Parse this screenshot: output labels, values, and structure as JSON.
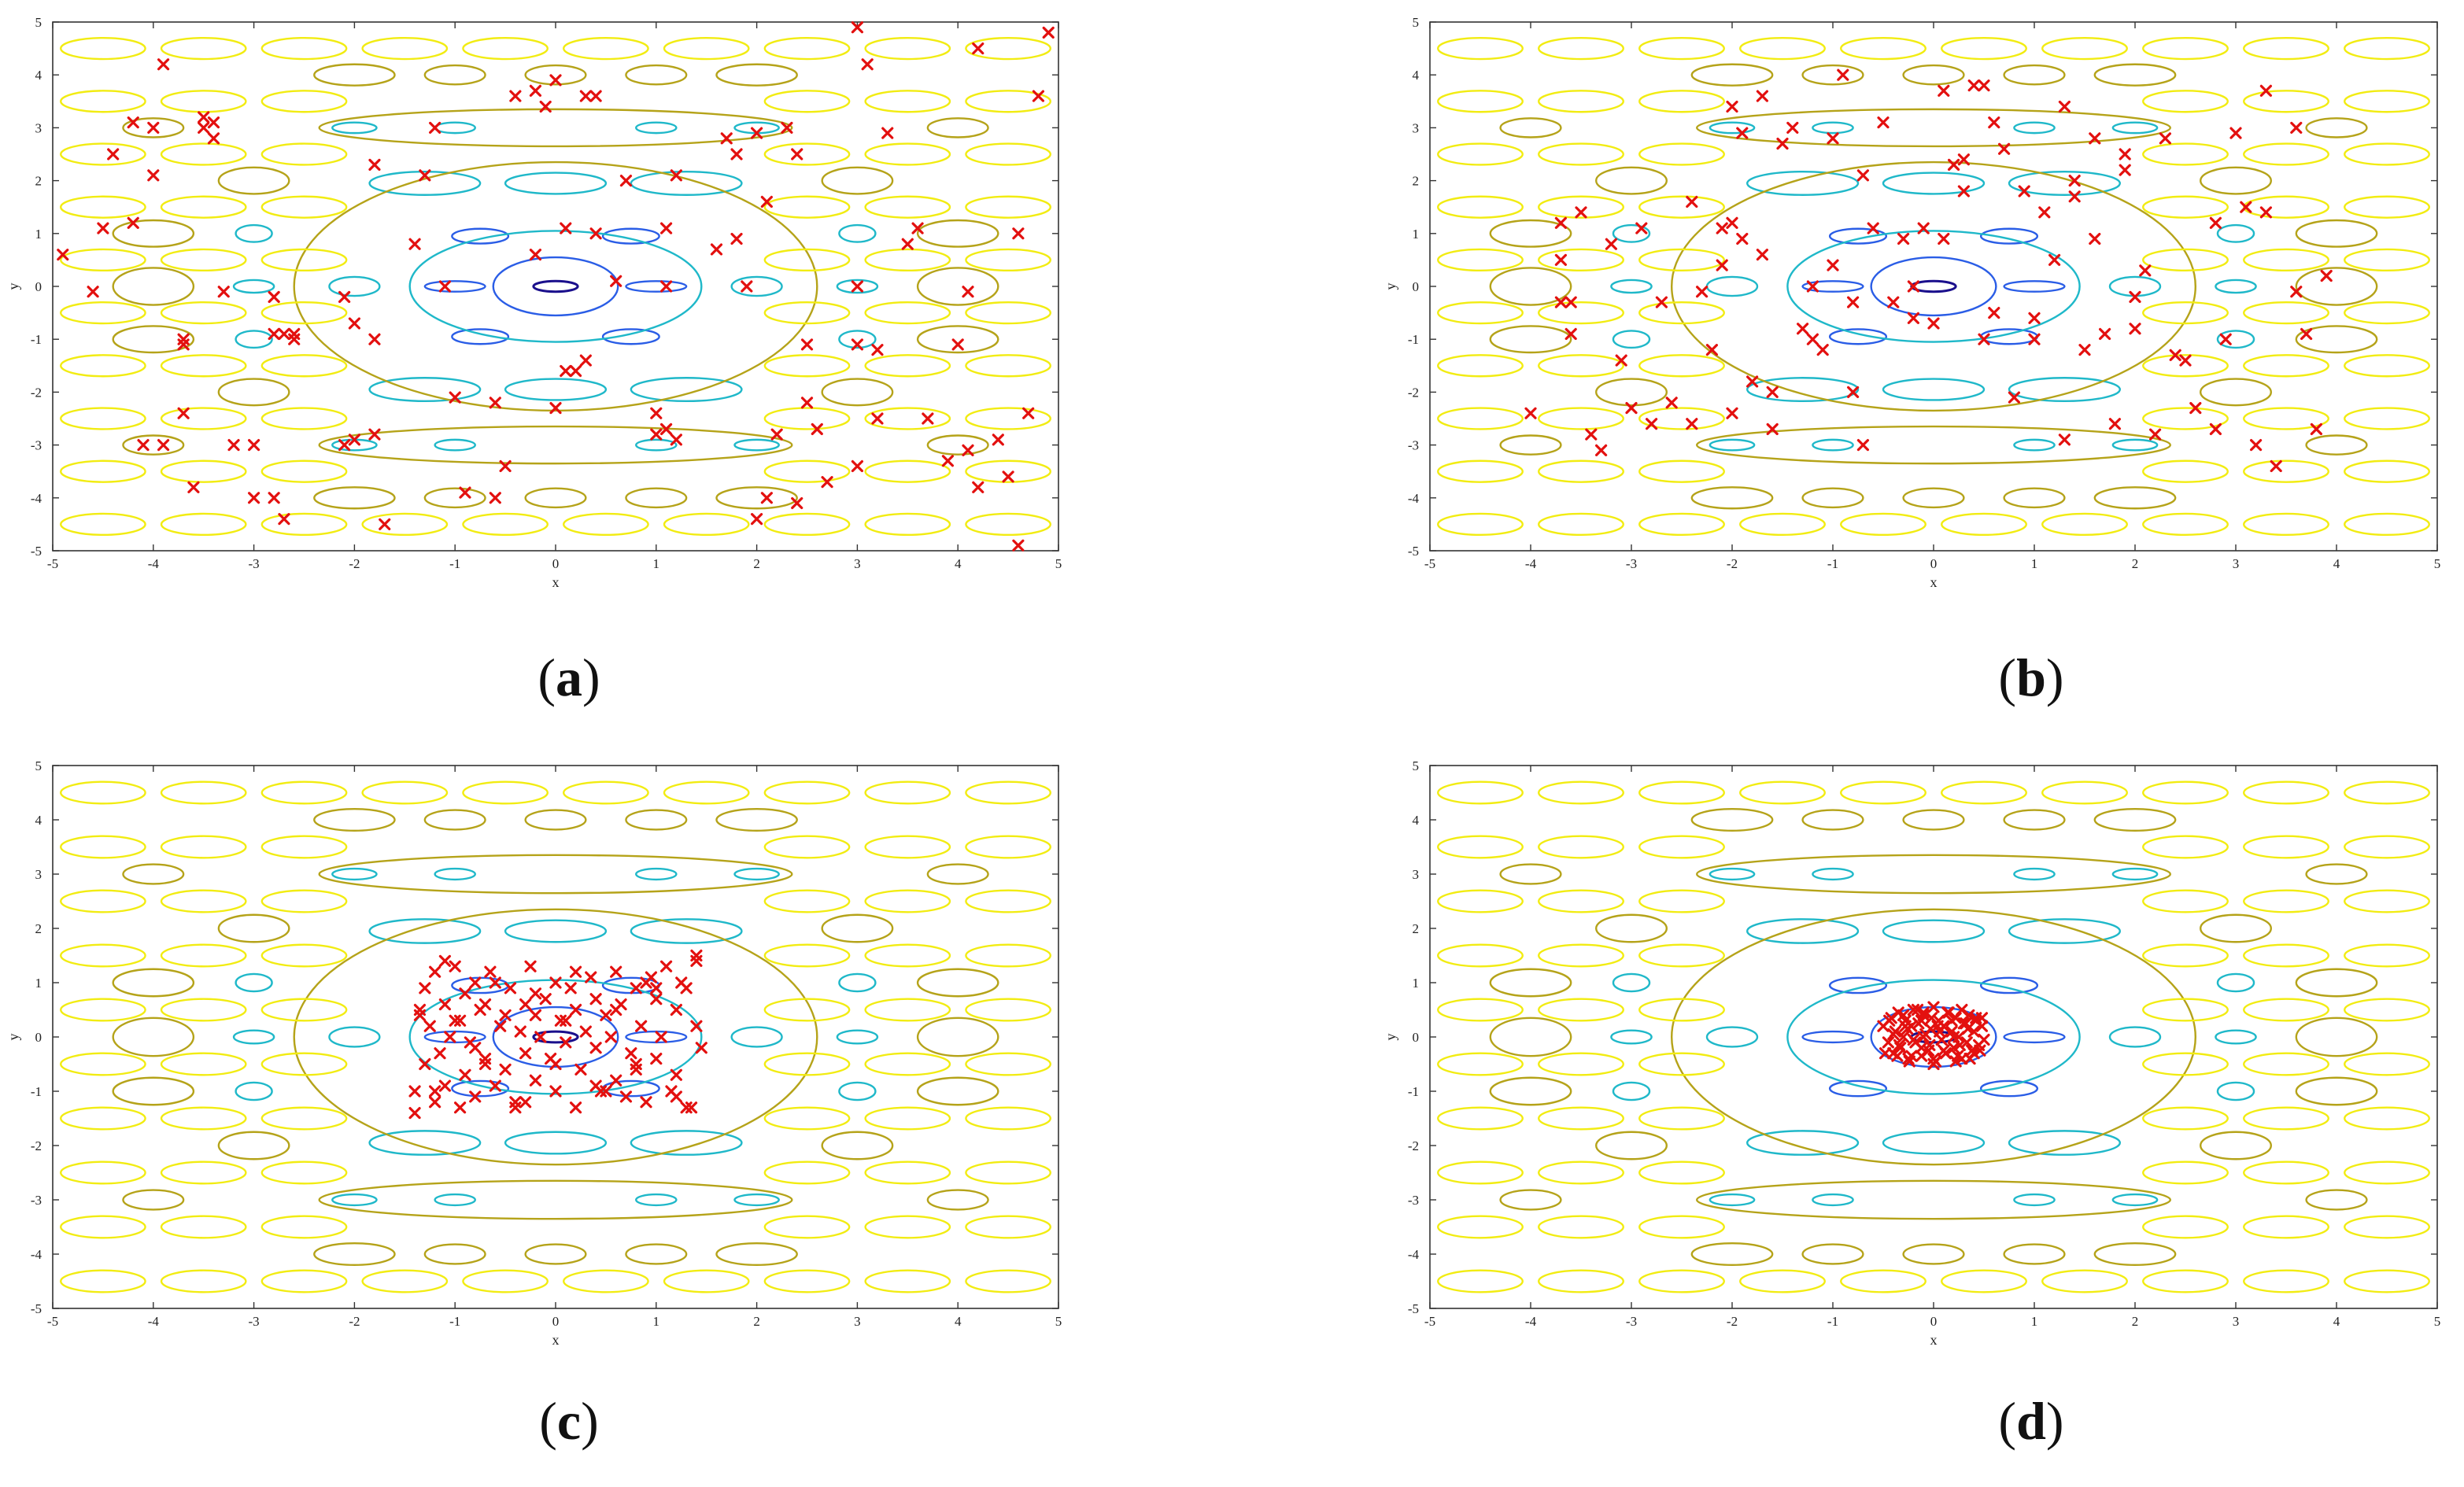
{
  "figure": {
    "panels": [
      {
        "label_open": "(",
        "label_letter": "a",
        "label_close": ")"
      },
      {
        "label_open": "(",
        "label_letter": "b",
        "label_close": ")"
      },
      {
        "label_open": "(",
        "label_letter": "c",
        "label_close": ")"
      },
      {
        "label_open": "(",
        "label_letter": "d",
        "label_close": ")"
      }
    ]
  },
  "chart_data": [
    {
      "type": "scatter",
      "title": "",
      "xlabel": "x",
      "ylabel": "y",
      "xlim": [
        -5,
        5
      ],
      "ylim": [
        -5,
        5
      ],
      "xticks": [
        -5,
        -4,
        -3,
        -2,
        -1,
        0,
        1,
        2,
        3,
        4,
        5
      ],
      "yticks": [
        -5,
        -4,
        -3,
        -2,
        -1,
        0,
        1,
        2,
        3,
        4,
        5
      ],
      "grid": false,
      "background": "contour plot of a multimodal test function with global minimum at (0,0)",
      "contour_colors": [
        "#1a0f8c",
        "#2a5de6",
        "#1fb8c9",
        "#b5a319",
        "#f2ec12"
      ],
      "marker": "x",
      "marker_color": "#e3100f",
      "series": [
        {
          "x": [
            -4.9,
            -4.6,
            -4.4,
            -4.2,
            -4.0,
            -3.9,
            -3.7,
            -3.5,
            -3.5,
            -3.4,
            -3.3,
            -3.7,
            -3.6,
            -3.4,
            -4.2,
            -4.5,
            -4.0,
            -3.7,
            -2.8,
            -2.7,
            -2.6,
            -2.7,
            -2.6,
            -2.8,
            -3.0,
            -2.0,
            -2.1,
            -1.8,
            -1.7,
            -2.0,
            -1.8,
            -1.4,
            -1.3,
            -1.2,
            -1.0,
            -0.9,
            -0.5,
            -0.4,
            -0.2,
            -0.1,
            0.0,
            0.1,
            0.3,
            0.4,
            0.4,
            0.2,
            0.3,
            0.1,
            0.0,
            -0.2,
            -0.6,
            0.7,
            1.0,
            1.1,
            1.2,
            0.6,
            1.0,
            1.1,
            1.6,
            1.7,
            1.8,
            1.9,
            2.1,
            2.0,
            2.2,
            2.3,
            2.4,
            2.5,
            2.5,
            2.6,
            2.7,
            3.0,
            3.0,
            3.1,
            3.2,
            3.0,
            3.0,
            3.5,
            3.6,
            3.3,
            3.2,
            3.7,
            3.9,
            4.0,
            4.1,
            4.2,
            4.4,
            4.5,
            4.6,
            4.7,
            4.8,
            4.9,
            4.6,
            4.2,
            4.1,
            2.0,
            2.1,
            2.4,
            1.8,
            1.1,
            1.2,
            -1.8,
            -2.1,
            -3.0,
            -1.1,
            -0.6,
            -4.1,
            -3.9,
            -3.2,
            -2.8
          ],
          "y": [
            0.6,
            -0.1,
            2.5,
            1.2,
            3.0,
            4.2,
            -1.0,
            3.0,
            3.2,
            2.8,
            -0.1,
            -2.4,
            -3.8,
            3.1,
            3.1,
            1.1,
            2.1,
            -1.1,
            -0.9,
            -4.4,
            -1.0,
            -0.9,
            -0.9,
            -0.2,
            -4.0,
            -2.9,
            -0.2,
            -2.8,
            -4.5,
            -0.7,
            2.3,
            0.8,
            2.1,
            3.0,
            -2.1,
            -3.9,
            -3.4,
            3.6,
            3.7,
            3.4,
            3.9,
            1.1,
            3.6,
            3.6,
            1.0,
            -1.6,
            -1.4,
            -1.6,
            -2.3,
            0.6,
            -4.0,
            2.0,
            -2.8,
            -2.7,
            2.1,
            0.1,
            -2.4,
            1.1,
            0.7,
            2.8,
            0.9,
            0.0,
            1.6,
            -4.4,
            -2.8,
            3.0,
            2.5,
            -1.1,
            -2.2,
            -2.7,
            -3.7,
            0.0,
            -3.4,
            4.2,
            -1.2,
            4.9,
            -1.1,
            0.8,
            1.1,
            2.9,
            -2.5,
            -2.5,
            -3.3,
            -1.1,
            -0.1,
            4.5,
            -2.9,
            -3.6,
            1.0,
            -2.4,
            3.6,
            4.8,
            -4.9,
            -3.8,
            -3.1,
            2.9,
            -4.0,
            -4.1,
            2.5,
            0.0,
            -2.9,
            -1.0,
            -3.0,
            -3.0,
            0.0,
            -2.2,
            -3.0,
            -3.0,
            -3.0,
            -4.0
          ]
        }
      ]
    },
    {
      "type": "scatter",
      "title": "",
      "xlabel": "x",
      "ylabel": "y",
      "xlim": [
        -5,
        5
      ],
      "ylim": [
        -5,
        5
      ],
      "xticks": [
        -5,
        -4,
        -3,
        -2,
        -1,
        0,
        1,
        2,
        3,
        4,
        5
      ],
      "yticks": [
        -5,
        -4,
        -3,
        -2,
        -1,
        0,
        1,
        2,
        3,
        4,
        5
      ],
      "grid": false,
      "marker": "x",
      "marker_color": "#e3100f",
      "series": [
        {
          "x": [
            -4.0,
            -3.7,
            -3.7,
            -3.6,
            -3.6,
            -3.5,
            -3.4,
            -3.3,
            -3.2,
            -3.1,
            -2.9,
            -2.8,
            -2.7,
            -2.6,
            -2.4,
            -2.4,
            -2.3,
            -2.2,
            -2.1,
            -2.0,
            -2.0,
            -1.9,
            -1.9,
            -1.8,
            -1.7,
            -1.6,
            -1.6,
            -1.5,
            -1.4,
            -1.3,
            -1.2,
            -1.1,
            -1.0,
            -1.0,
            -0.9,
            -0.8,
            -0.8,
            -0.7,
            -0.6,
            -0.5,
            -0.4,
            -0.3,
            -0.2,
            -0.2,
            -0.1,
            0.0,
            0.1,
            0.1,
            0.2,
            0.3,
            0.4,
            0.5,
            0.6,
            0.7,
            0.8,
            0.9,
            1.0,
            1.0,
            1.1,
            1.2,
            1.3,
            1.3,
            1.4,
            1.5,
            1.6,
            1.7,
            1.8,
            1.9,
            2.0,
            2.1,
            2.2,
            2.3,
            2.5,
            2.6,
            2.8,
            2.9,
            3.0,
            3.1,
            3.2,
            3.3,
            3.4,
            3.6,
            3.7,
            3.8,
            3.9,
            -3.0,
            -2.1,
            -1.7,
            -1.2,
            -0.7,
            0.3,
            0.6,
            1.6,
            2.0,
            2.8,
            3.6,
            -3.7,
            -2.0,
            0.5,
            1.4,
            1.9,
            2.4,
            3.3
          ],
          "y": [
            -2.4,
            1.2,
            0.5,
            -0.3,
            -0.9,
            1.4,
            -2.8,
            -3.1,
            0.8,
            -1.4,
            1.1,
            -2.6,
            -0.3,
            -2.2,
            1.6,
            -2.6,
            -0.1,
            -1.2,
            0.4,
            -2.4,
            3.4,
            0.9,
            2.9,
            -1.8,
            0.6,
            -2.0,
            -2.7,
            2.7,
            3.0,
            -0.8,
            0.0,
            -1.2,
            2.8,
            0.4,
            4.0,
            -0.3,
            -2.0,
            2.1,
            1.1,
            3.1,
            -0.3,
            0.9,
            -0.6,
            0.0,
            1.1,
            -0.7,
            3.7,
            0.9,
            2.3,
            1.8,
            3.8,
            -1.0,
            3.1,
            2.6,
            -2.1,
            1.8,
            -1.0,
            -0.6,
            1.4,
            0.5,
            3.4,
            -2.9,
            2.0,
            -1.2,
            2.8,
            -0.9,
            -2.6,
            2.2,
            -0.2,
            0.3,
            -2.8,
            2.8,
            -1.4,
            -2.3,
            -2.7,
            -1.0,
            2.9,
            1.5,
            -3.0,
            3.7,
            -3.4,
            -0.1,
            -0.9,
            -2.7,
            0.2,
            -2.3,
            1.1,
            3.6,
            -1.0,
            -3.0,
            2.4,
            -0.5,
            0.9,
            -0.8,
            1.2,
            3.0,
            -0.3,
            1.2,
            3.8,
            1.7,
            2.5,
            -1.3,
            1.4
          ],
          "note_hidden": ""
        }
      ]
    },
    {
      "type": "scatter",
      "title": "",
      "xlabel": "x",
      "ylabel": "y",
      "xlim": [
        -5,
        5
      ],
      "ylim": [
        -5,
        5
      ],
      "xticks": [
        -5,
        -4,
        -3,
        -2,
        -1,
        0,
        1,
        2,
        3,
        4,
        5
      ],
      "yticks": [
        -5,
        -4,
        -3,
        -2,
        -1,
        0,
        1,
        2,
        3,
        4,
        5
      ],
      "grid": false,
      "marker": "x",
      "marker_color": "#e3100f",
      "series": [
        {
          "x": [
            -1.4,
            -1.35,
            -1.3,
            -1.3,
            -1.25,
            -1.2,
            -1.2,
            -1.15,
            -1.1,
            -1.1,
            -1.05,
            -1.0,
            -0.95,
            -0.95,
            -0.9,
            -0.9,
            -0.85,
            -0.8,
            -0.8,
            -0.75,
            -0.7,
            -0.7,
            -0.65,
            -0.6,
            -0.55,
            -0.5,
            -0.5,
            -0.45,
            -0.4,
            -0.35,
            -0.3,
            -0.3,
            -0.25,
            -0.2,
            -0.2,
            -0.15,
            -0.1,
            -0.05,
            0.0,
            0.0,
            0.05,
            0.1,
            0.15,
            0.2,
            0.2,
            0.25,
            0.3,
            0.35,
            0.4,
            0.4,
            0.45,
            0.5,
            0.55,
            0.6,
            0.6,
            0.65,
            0.7,
            0.75,
            0.8,
            0.8,
            0.85,
            0.9,
            0.95,
            1.0,
            1.0,
            1.05,
            1.1,
            1.15,
            1.2,
            1.2,
            1.25,
            1.3,
            1.35,
            1.4,
            1.4,
            1.45,
            -1.35,
            -1.2,
            -1.0,
            -0.8,
            -0.6,
            -0.4,
            -0.2,
            0.0,
            0.2,
            0.4,
            0.6,
            0.8,
            1.0,
            1.2,
            1.4,
            -1.4,
            -1.1,
            -0.7,
            -0.3,
            0.1,
            0.5,
            0.9,
            1.3
          ],
          "y": [
            -1.4,
            0.4,
            -0.5,
            0.9,
            0.2,
            -1.2,
            1.2,
            -0.3,
            0.6,
            -0.9,
            0.0,
            1.3,
            -1.3,
            0.3,
            -0.7,
            0.8,
            -0.1,
            1.0,
            -1.1,
            0.5,
            -0.4,
            0.6,
            1.2,
            -0.9,
            0.2,
            0.4,
            -0.6,
            0.9,
            -1.2,
            0.1,
            0.6,
            -0.3,
            1.3,
            -0.8,
            0.4,
            0.0,
            0.7,
            -0.4,
            1.0,
            -1.0,
            0.3,
            -0.1,
            0.9,
            -1.3,
            0.5,
            -0.6,
            0.1,
            1.1,
            -0.2,
            0.7,
            -1.0,
            0.4,
            0.0,
            -0.8,
            1.2,
            0.6,
            -1.1,
            -0.3,
            0.9,
            -0.6,
            0.2,
            -1.2,
            1.1,
            0.7,
            -0.4,
            0.0,
            1.3,
            -1.0,
            0.5,
            -0.7,
            1.0,
            0.9,
            -1.3,
            0.2,
            1.5,
            -0.2,
            0.5,
            -1.0,
            0.3,
            -0.2,
            1.0,
            -1.3,
            0.8,
            -0.5,
            1.2,
            -0.9,
            0.5,
            -0.5,
            0.9,
            -1.1,
            1.4,
            -1.0,
            1.4,
            -0.5,
            -1.2,
            0.3,
            -1.0,
            1.0,
            -1.3
          ],
          "note_hidden": ""
        }
      ]
    },
    {
      "type": "scatter",
      "title": "",
      "xlabel": "x",
      "ylabel": "y",
      "xlim": [
        -5,
        5
      ],
      "ylim": [
        -5,
        5
      ],
      "xticks": [
        -5,
        -4,
        -3,
        -2,
        -1,
        0,
        1,
        2,
        3,
        4,
        5
      ],
      "yticks": [
        -5,
        -4,
        -3,
        -2,
        -1,
        0,
        1,
        2,
        3,
        4,
        5
      ],
      "grid": false,
      "marker": "x",
      "marker_color": "#e3100f",
      "series": [
        {
          "x": [
            -0.5,
            -0.45,
            -0.42,
            -0.4,
            -0.38,
            -0.35,
            -0.33,
            -0.3,
            -0.28,
            -0.25,
            -0.22,
            -0.2,
            -0.18,
            -0.15,
            -0.12,
            -0.1,
            -0.08,
            -0.05,
            -0.03,
            0.0,
            0.02,
            0.05,
            0.08,
            0.1,
            0.12,
            0.15,
            0.18,
            0.2,
            0.22,
            0.25,
            0.28,
            0.3,
            0.33,
            0.35,
            0.38,
            0.4,
            0.42,
            0.45,
            0.48,
            0.5,
            -0.48,
            -0.36,
            -0.24,
            -0.12,
            0.0,
            0.12,
            0.24,
            0.36,
            0.48,
            -0.44,
            -0.3,
            -0.16,
            -0.02,
            0.14,
            0.28,
            0.42,
            -0.4,
            -0.26,
            -0.1,
            0.06,
            0.2,
            0.34,
            0.46,
            -0.34,
            -0.2,
            -0.04,
            0.1,
            0.26,
            0.4,
            -0.28,
            -0.12,
            0.04,
            0.18,
            0.32,
            -0.22,
            0.0,
            0.22,
            -0.1,
            0.14
          ],
          "y": [
            0.2,
            -0.1,
            0.35,
            -0.3,
            0.1,
            0.45,
            -0.2,
            0.0,
            0.3,
            -0.4,
            0.2,
            0.5,
            -0.1,
            0.25,
            -0.35,
            0.4,
            0.05,
            -0.25,
            0.15,
            0.55,
            -0.45,
            0.3,
            -0.05,
            0.2,
            -0.3,
            0.45,
            0.1,
            -0.2,
            0.35,
            0.0,
            -0.4,
            0.25,
            -0.1,
            0.4,
            -0.25,
            0.1,
            0.3,
            -0.15,
            0.2,
            -0.05,
            -0.3,
            -0.35,
            -0.45,
            -0.2,
            -0.5,
            -0.3,
            -0.35,
            -0.4,
            0.35,
            0.3,
            0.4,
            0.5,
            0.35,
            0.45,
            0.5,
            0.35,
            0.05,
            0.15,
            0.0,
            0.1,
            0.0,
            0.15,
            -0.25,
            -0.15,
            -0.05,
            -0.15,
            -0.25,
            -0.15,
            -0.3,
            0.2,
            0.3,
            0.2,
            0.3,
            0.25,
            -0.35,
            -0.4,
            -0.45,
            0.45,
            0.45
          ],
          "note_hidden": ""
        }
      ]
    }
  ]
}
